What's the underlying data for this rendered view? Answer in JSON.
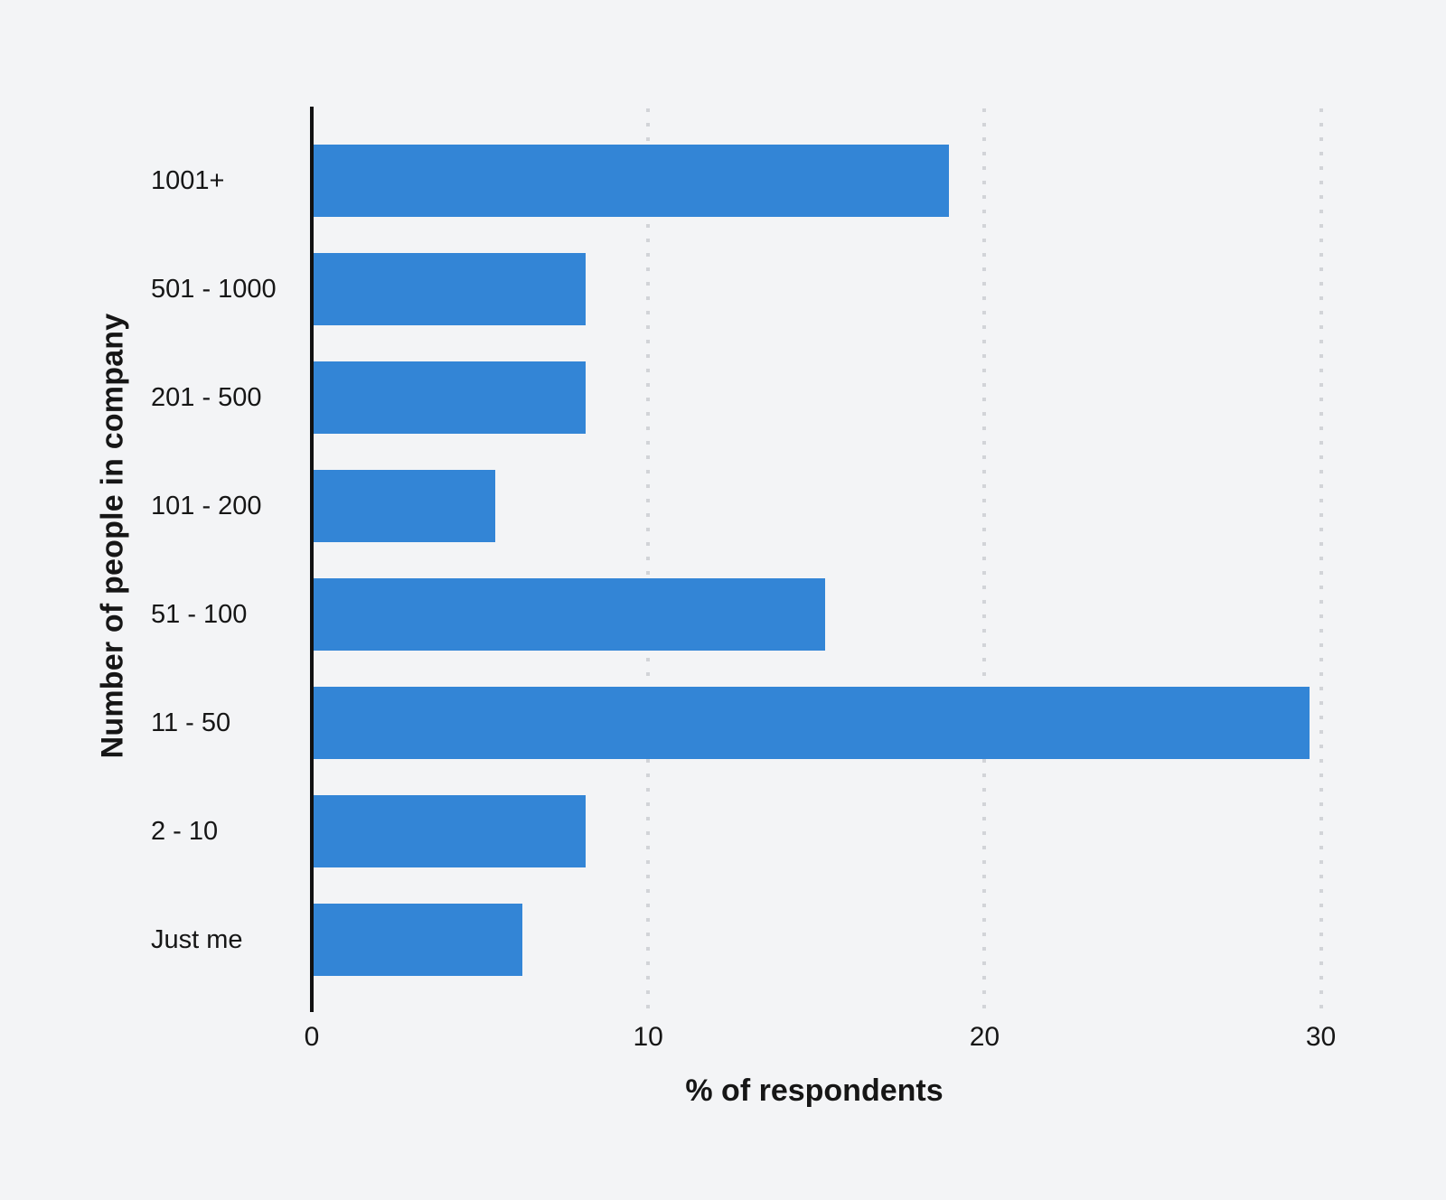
{
  "chart_data": {
    "type": "bar",
    "orientation": "horizontal",
    "categories": [
      "1001+",
      "501 - 1000",
      "201 - 500",
      "101 - 200",
      "51 - 100",
      "11 - 50",
      "2 - 10",
      "Just me"
    ],
    "values": [
      18.9,
      8.1,
      8.1,
      5.4,
      15.2,
      29.6,
      8.1,
      6.2
    ],
    "xlabel": "% of respondents",
    "ylabel": "Number of people in company",
    "xticks": [
      0,
      10,
      20,
      30
    ],
    "xlim": [
      0,
      32
    ],
    "grid": "vertical dotted gridlines at x ticks",
    "legend": false,
    "colors": {
      "bar": "#3385d6",
      "background": "#f3f4f6",
      "axis": "#111111",
      "gridline": "#d2d4d8",
      "text": "#161616"
    }
  }
}
